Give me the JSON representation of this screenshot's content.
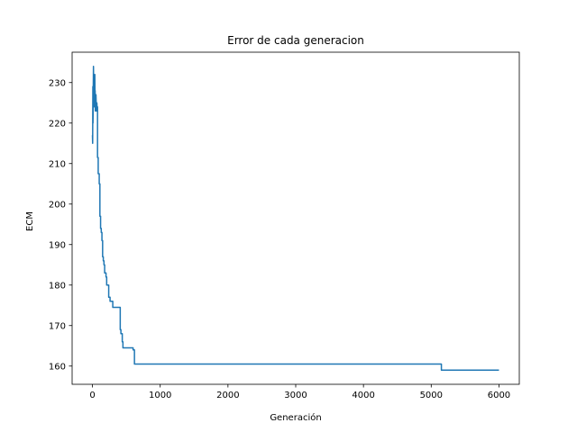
{
  "chart_data": {
    "type": "line",
    "title": "Error de cada generacion",
    "xlabel": "Generación",
    "ylabel": "ECM",
    "xlim": [
      -300,
      6300
    ],
    "ylim": [
      155.5,
      237.5
    ],
    "xticks": [
      0,
      1000,
      2000,
      3000,
      4000,
      5000,
      6000
    ],
    "yticks": [
      160,
      170,
      180,
      190,
      200,
      210,
      220,
      230
    ],
    "grid": false,
    "colors": {
      "line": "#1f77b4"
    },
    "series": [
      {
        "x": [
          0,
          3,
          6,
          8,
          10,
          12,
          15,
          18,
          20,
          22,
          25,
          28,
          30,
          32,
          35,
          38,
          40,
          42,
          45,
          48,
          50,
          52,
          55,
          58,
          60,
          62,
          65,
          68,
          70,
          75,
          75,
          85,
          85,
          100,
          100,
          110,
          110,
          120,
          120,
          130,
          130,
          140,
          140,
          150,
          150,
          160,
          160,
          170,
          170,
          180,
          180,
          190,
          190,
          195,
          195,
          200,
          200,
          210,
          210,
          220,
          220,
          240,
          240,
          260,
          260,
          300,
          300,
          320,
          320,
          330,
          330,
          410,
          410,
          420,
          420,
          440,
          440,
          450,
          450,
          600,
          600,
          620,
          620,
          5150,
          5150,
          6000
        ],
        "y": [
          217,
          215,
          229,
          220,
          223,
          229,
          234,
          229,
          226,
          231,
          232,
          224,
          228,
          225,
          232,
          226,
          228,
          223,
          225,
          226,
          223,
          227,
          225,
          224,
          223,
          224,
          225,
          224,
          224,
          224,
          211.5,
          211.5,
          207.5,
          207.5,
          205,
          205,
          197,
          197,
          194,
          194,
          193,
          193,
          191,
          191,
          187,
          187,
          186,
          186,
          185,
          185,
          183,
          183,
          183,
          183,
          183,
          183,
          182,
          182,
          180,
          180,
          180,
          180,
          177,
          177,
          176,
          176,
          174.5,
          174.5,
          174.5,
          174.5,
          174.5,
          174.5,
          169,
          169,
          168,
          168,
          166,
          166,
          164.5,
          164.5,
          164,
          164,
          160.5,
          160.5,
          159,
          159
        ]
      }
    ]
  }
}
